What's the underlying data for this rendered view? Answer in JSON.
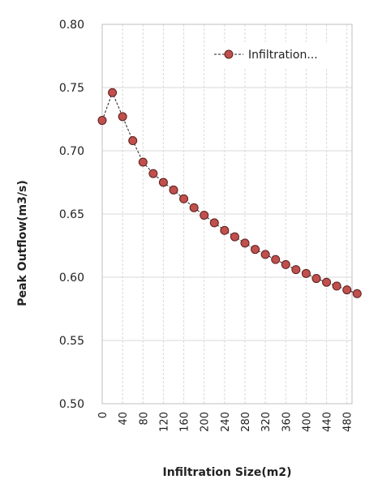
{
  "chart_data": {
    "type": "line",
    "title": "",
    "xlabel": "Infiltration Size(m2)",
    "ylabel": "Peak Outflow(m3/s)",
    "ylim": [
      0.5,
      0.8
    ],
    "xlim": [
      0,
      490
    ],
    "yticks": [
      0.5,
      0.55,
      0.6,
      0.65,
      0.7,
      0.75,
      0.8
    ],
    "ytick_labels": [
      "0.50",
      "0.55",
      "0.60",
      "0.65",
      "0.70",
      "0.75",
      "0.80"
    ],
    "xticks": [
      0,
      40,
      80,
      120,
      160,
      200,
      240,
      280,
      320,
      360,
      400,
      440,
      480
    ],
    "xtick_labels": [
      "0",
      "40",
      "80",
      "120",
      "160",
      "200",
      "240",
      "280",
      "320",
      "360",
      "400",
      "440",
      "480"
    ],
    "grid": true,
    "legend_position": "top-right",
    "series": [
      {
        "name": "Infiltration...",
        "color": "#c0504d",
        "line_style": "dashed",
        "x": [
          0,
          20,
          40,
          60,
          80,
          100,
          120,
          140,
          160,
          180,
          200,
          220,
          240,
          260,
          280,
          300,
          320,
          340,
          360,
          380,
          400,
          420,
          440,
          460,
          480,
          500
        ],
        "y": [
          0.724,
          0.746,
          0.727,
          0.708,
          0.691,
          0.682,
          0.675,
          0.669,
          0.662,
          0.655,
          0.649,
          0.643,
          0.637,
          0.632,
          0.627,
          0.622,
          0.618,
          0.614,
          0.61,
          0.606,
          0.603,
          0.599,
          0.596,
          0.593,
          0.59,
          0.587
        ]
      }
    ]
  }
}
